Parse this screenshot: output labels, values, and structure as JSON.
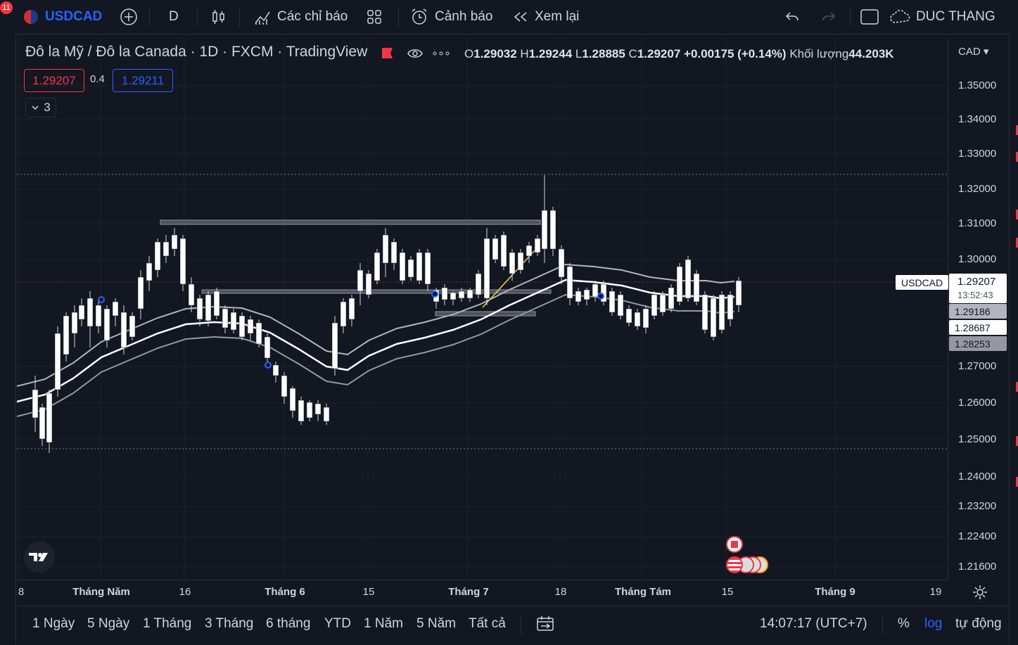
{
  "toolbar": {
    "notification_count": "11",
    "symbol": "USDCAD",
    "interval": "D",
    "indicators_label": "Các chỉ báo",
    "alerts_label": "Cảnh báo",
    "replay_label": "Xem lại",
    "user_name": "DUC THANG"
  },
  "legend": {
    "title": "Đô la Mỹ / Đô la Canada · 1D · FXCM · TradingView",
    "open_prefix": "O",
    "open": "1.29032",
    "high_prefix": "H",
    "high": "1.29244",
    "low_prefix": "L",
    "low": "1.28885",
    "close_prefix": "C",
    "close": "1.29207",
    "change": "+0.00175 (+0.14%)",
    "volume_label": "Khối lượng",
    "volume": "44.203K",
    "sell_price": "1.29207",
    "spread": "0.4",
    "buy_price": "1.29211",
    "indicator_count": "3"
  },
  "price_axis": {
    "currency": "CAD",
    "ticks": [
      "1.35000",
      "1.34000",
      "1.33000",
      "1.32000",
      "1.31000",
      "1.30000",
      "1.27000",
      "1.26000",
      "1.25000",
      "1.24000",
      "1.23200",
      "1.22400",
      "1.21600"
    ],
    "symbol_tag": "USDCAD",
    "last_price": "1.29207",
    "countdown": "13:52:43",
    "band_upper": "1.29186",
    "band_mid": "1.28687",
    "band_lower": "1.28253"
  },
  "time_axis": [
    "8",
    "Tháng Năm",
    "16",
    "Tháng 6",
    "15",
    "Tháng 7",
    "18",
    "Tháng Tám",
    "15",
    "Tháng 9",
    "19"
  ],
  "ranges": [
    "1 Ngày",
    "5 Ngày",
    "1 Tháng",
    "3 Tháng",
    "6 tháng",
    "YTD",
    "1 Năm",
    "5 Năm",
    "Tất cả"
  ],
  "bottom_right": {
    "clock": "14:07:17 (UTC+7)",
    "percent": "%",
    "log": "log",
    "auto": "tự động"
  },
  "colors": {
    "background": "#131722",
    "candle_up": "#ffffff",
    "candle_down": "#ffffff",
    "accent_blue": "#2962ff",
    "sell_red": "#f23645"
  }
}
